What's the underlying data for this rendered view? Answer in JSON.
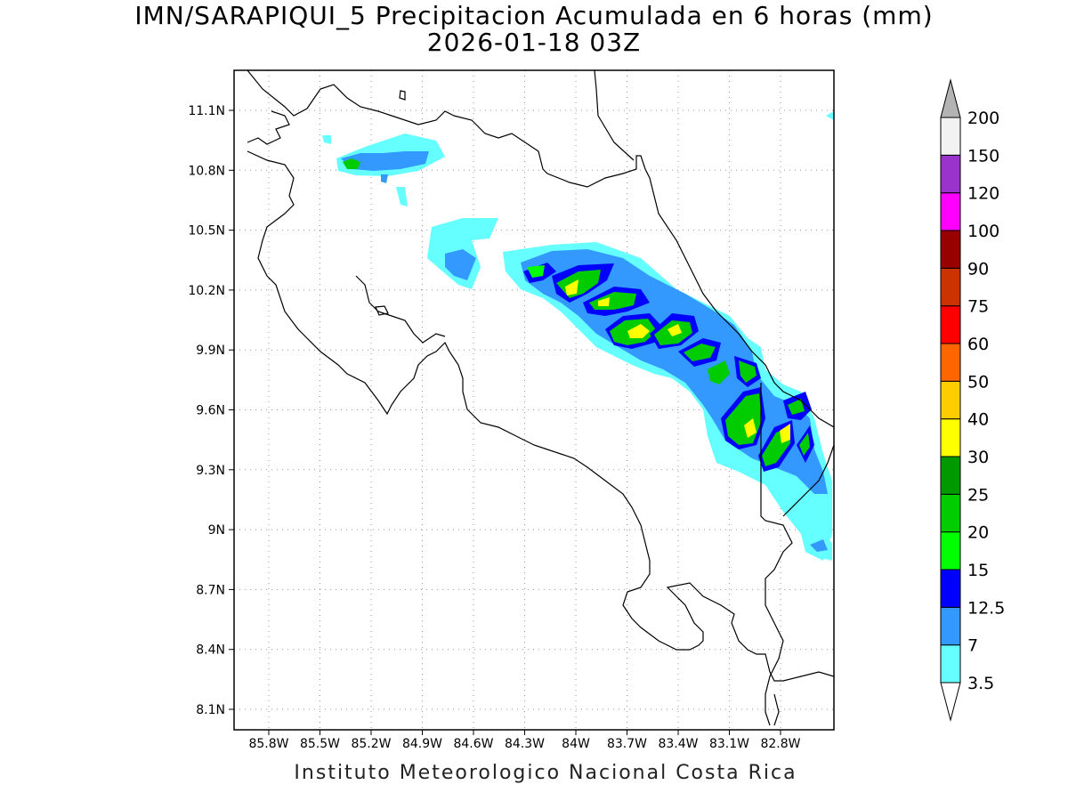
{
  "title": {
    "line1": "IMN/SARAPIQUI_5 Precipitacion Acumulada en 6 horas (mm)",
    "line2": "2026-01-18 03Z"
  },
  "credit": "Instituto Meteorologico Nacional Costa Rica",
  "axes": {
    "lon_ticks": [
      "85.8W",
      "85.5W",
      "85.2W",
      "84.9W",
      "84.6W",
      "84.3W",
      "84W",
      "83.7W",
      "83.4W",
      "83.1W",
      "82.8W"
    ],
    "lat_ticks": [
      "11.1N",
      "10.8N",
      "10.5N",
      "10.2N",
      "9.9N",
      "9.6N",
      "9.3N",
      "9N",
      "8.7N",
      "8.4N",
      "8.1N"
    ],
    "grid": "dotted"
  },
  "colorbar": {
    "labels": [
      "3.5",
      "7",
      "12.5",
      "15",
      "20",
      "25",
      "30",
      "40",
      "50",
      "60",
      "75",
      "90",
      "100",
      "120",
      "150",
      "200"
    ],
    "colors": [
      "#66ffff",
      "#3399ff",
      "#0000ff",
      "#00ff00",
      "#00cc00",
      "#009900",
      "#ffff00",
      "#ffcc00",
      "#ff6600",
      "#ff0000",
      "#cc3300",
      "#990000",
      "#ff00ff",
      "#9933cc",
      "#f2f2f2"
    ],
    "under_color": "#ffffff",
    "over_color": "#b3b3b3"
  }
}
